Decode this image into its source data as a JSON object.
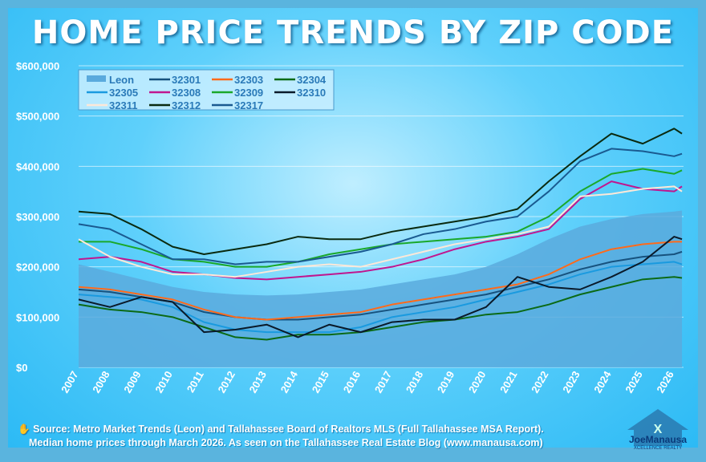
{
  "chart_data": {
    "type": "line",
    "title": "HOME PRICE TRENDS BY ZIP CODE",
    "xlabel": "",
    "ylabel": "",
    "x": [
      2007,
      2008,
      2009,
      2010,
      2011,
      2012,
      2013,
      2014,
      2015,
      2016,
      2017,
      2018,
      2019,
      2020,
      2021,
      2022,
      2023,
      2024,
      2025,
      2026,
      2026.25
    ],
    "xticks": [
      "2007",
      "2008",
      "2009",
      "2010",
      "2011",
      "2012",
      "2013",
      "2014",
      "2015",
      "2016",
      "2017",
      "2018",
      "2019",
      "2020",
      "2021",
      "2022",
      "2023",
      "2024",
      "2025",
      "2026"
    ],
    "yticks": [
      "$0",
      "$100,000",
      "$200,000",
      "$300,000",
      "$400,000",
      "$500,000",
      "$600,000"
    ],
    "ylim": [
      0,
      600000
    ],
    "grid": true,
    "legend": "top-left",
    "series": [
      {
        "name": "Leon",
        "style": "area",
        "color": "#5aaadd",
        "values": [
          205000,
          190000,
          175000,
          160000,
          150000,
          145000,
          143000,
          145000,
          150000,
          155000,
          165000,
          175000,
          185000,
          200000,
          225000,
          255000,
          280000,
          295000,
          305000,
          310000,
          312000
        ]
      },
      {
        "name": "32301",
        "color": "#17527e",
        "values": [
          155000,
          150000,
          140000,
          130000,
          110000,
          100000,
          95000,
          95000,
          100000,
          105000,
          115000,
          125000,
          135000,
          145000,
          160000,
          175000,
          195000,
          210000,
          220000,
          225000,
          230000
        ]
      },
      {
        "name": "32303",
        "color": "#ff6a1a",
        "values": [
          160000,
          155000,
          145000,
          135000,
          115000,
          100000,
          95000,
          100000,
          105000,
          110000,
          125000,
          135000,
          145000,
          155000,
          165000,
          185000,
          215000,
          235000,
          245000,
          250000,
          250000
        ]
      },
      {
        "name": "32304",
        "color": "#0b6a16",
        "values": [
          125000,
          115000,
          110000,
          100000,
          80000,
          60000,
          55000,
          65000,
          65000,
          70000,
          80000,
          90000,
          95000,
          105000,
          110000,
          125000,
          145000,
          160000,
          175000,
          180000,
          178000
        ]
      },
      {
        "name": "32305",
        "color": "#1a9adf",
        "values": [
          145000,
          140000,
          135000,
          120000,
          90000,
          75000,
          70000,
          70000,
          70000,
          80000,
          100000,
          110000,
          120000,
          135000,
          150000,
          165000,
          185000,
          200000,
          205000,
          210000,
          205000
        ]
      },
      {
        "name": "32308",
        "color": "#c0168f",
        "values": [
          215000,
          220000,
          210000,
          190000,
          185000,
          178000,
          175000,
          180000,
          185000,
          190000,
          200000,
          215000,
          235000,
          250000,
          260000,
          275000,
          335000,
          370000,
          355000,
          350000,
          360000
        ]
      },
      {
        "name": "32309",
        "color": "#1aa82a",
        "values": [
          250000,
          250000,
          235000,
          215000,
          210000,
          200000,
          200000,
          210000,
          225000,
          235000,
          245000,
          250000,
          255000,
          260000,
          270000,
          300000,
          350000,
          385000,
          395000,
          385000,
          392000
        ]
      },
      {
        "name": "32310",
        "color": "#0a1a2a",
        "values": [
          135000,
          120000,
          140000,
          130000,
          70000,
          75000,
          85000,
          60000,
          85000,
          70000,
          90000,
          95000,
          95000,
          120000,
          180000,
          160000,
          155000,
          180000,
          210000,
          260000,
          255000
        ]
      },
      {
        "name": "32311",
        "color": "#fde8d8",
        "values": [
          255000,
          220000,
          200000,
          185000,
          185000,
          180000,
          190000,
          200000,
          205000,
          200000,
          215000,
          230000,
          245000,
          255000,
          265000,
          280000,
          340000,
          345000,
          355000,
          360000,
          350000
        ]
      },
      {
        "name": "32312",
        "color": "#0a2a10",
        "values": [
          310000,
          305000,
          275000,
          240000,
          225000,
          235000,
          245000,
          260000,
          255000,
          255000,
          270000,
          280000,
          290000,
          300000,
          315000,
          370000,
          420000,
          465000,
          445000,
          475000,
          465000
        ]
      },
      {
        "name": "32317",
        "color": "#1a5a90",
        "values": [
          285000,
          275000,
          245000,
          215000,
          215000,
          205000,
          210000,
          210000,
          220000,
          230000,
          245000,
          265000,
          275000,
          290000,
          300000,
          350000,
          410000,
          435000,
          430000,
          420000,
          425000
        ]
      }
    ]
  },
  "footer": {
    "line1": "Source: Metro Market Trends (Leon) and Tallahassee Board of Realtors MLS (Full Tallahassee MSA Report).",
    "line2": "Median home prices through March 2026.  As seen on the Tallahassee Real Estate Blog (www.manausa.com)"
  },
  "logo": {
    "text": "Joe Manausa XCELLENCE REALTY www.manausa.com"
  }
}
